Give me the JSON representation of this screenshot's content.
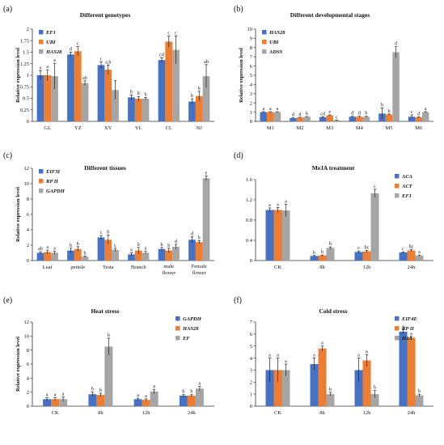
{
  "chart_data": [
    {
      "panel_label": "(a)",
      "title": "Different genotypes",
      "type": "bar",
      "ylabel": "Relative expression level",
      "ylim": [
        0,
        2
      ],
      "yticks": [
        0,
        0.25,
        0.5,
        0.75,
        1,
        1.25,
        1.5,
        1.75,
        2
      ],
      "legend_position": "top-left",
      "categories": [
        "GL",
        "YZ",
        "XY",
        "YL",
        "CL",
        "NJ"
      ],
      "series": [
        {
          "name": "EF1",
          "color": "#4472c4",
          "values": [
            1.0,
            1.45,
            1.22,
            0.52,
            1.33,
            0.43
          ],
          "errors": [
            0.1,
            0.05,
            0.07,
            0.05,
            0.05,
            0.06
          ],
          "letters": [
            "a",
            "d",
            "c",
            "b",
            "cd",
            "b"
          ]
        },
        {
          "name": "UBI",
          "color": "#ed7d31",
          "values": [
            1.0,
            1.52,
            1.12,
            0.49,
            1.73,
            0.55
          ],
          "errors": [
            0.12,
            0.1,
            0.1,
            0.05,
            0.12,
            0.1
          ],
          "letters": [
            "a",
            "c",
            "a,b",
            "b",
            "c",
            "b"
          ]
        },
        {
          "name": "HAS28",
          "color": "#a5a5a5",
          "values": [
            0.98,
            0.83,
            0.68,
            0.49,
            1.55,
            0.98
          ],
          "errors": [
            0.28,
            0.05,
            0.2,
            0.03,
            0.3,
            0.25
          ],
          "letters": [
            "a",
            "ab",
            "",
            "b",
            "c",
            "ab"
          ]
        }
      ]
    },
    {
      "panel_label": "(b)",
      "title": "Different developmental stages",
      "type": "bar",
      "ylabel": "Relative expression level",
      "ylim": [
        0,
        10
      ],
      "yticks": [
        0,
        1,
        2,
        3,
        4,
        5,
        6,
        7,
        8,
        9,
        10
      ],
      "legend_position": "top-left",
      "categories": [
        "M1",
        "M2",
        "M3",
        "M4",
        "M5",
        "M6"
      ],
      "series": [
        {
          "name": "HAS28",
          "color": "#4472c4",
          "values": [
            1.0,
            0.35,
            0.45,
            0.5,
            0.85,
            0.5
          ],
          "errors": [
            0.05,
            0.03,
            0.04,
            0.05,
            0.6,
            0.2
          ],
          "letters": [
            "a",
            "d",
            "cd",
            "d",
            "b",
            "c"
          ]
        },
        {
          "name": "UBI",
          "color": "#ed7d31",
          "values": [
            1.0,
            0.42,
            0.65,
            0.5,
            0.75,
            0.45
          ],
          "errors": [
            0.05,
            0.03,
            0.05,
            0.05,
            0.05,
            0.05
          ],
          "letters": [
            "a",
            "d",
            "e",
            "d",
            "b",
            "d"
          ]
        },
        {
          "name": "ADSS",
          "color": "#a5a5a5",
          "values": [
            1.0,
            0.5,
            0.12,
            0.5,
            7.5,
            1.0
          ],
          "errors": [
            0.05,
            0.03,
            0.02,
            0.05,
            0.6,
            0.05
          ],
          "letters": [
            "a",
            "b",
            "c",
            "b",
            "d",
            "a"
          ]
        }
      ]
    },
    {
      "panel_label": "(c)",
      "title": "Different tissues",
      "type": "bar",
      "ylabel": "Relative expression level",
      "ylim": [
        0,
        12
      ],
      "yticks": [
        0,
        2,
        4,
        6,
        8,
        10,
        12
      ],
      "legend_position": "top-left",
      "categories": [
        "Leaf",
        "petiole",
        "Testa",
        "Branch",
        "male flower",
        "Female flower"
      ],
      "series": [
        {
          "name": "EIF3I",
          "color": "#4472c4",
          "values": [
            1.0,
            1.3,
            3.0,
            0.8,
            1.5,
            2.7
          ],
          "errors": [
            0.15,
            0.3,
            0.25,
            0.2,
            0.2,
            0.4
          ],
          "letters": [
            "ab",
            "b",
            "c",
            "a",
            "b",
            "d"
          ]
        },
        {
          "name": "RP II",
          "color": "#ed7d31",
          "values": [
            1.1,
            1.5,
            2.7,
            1.3,
            1.3,
            2.4
          ],
          "errors": [
            0.25,
            0.3,
            0.6,
            0.4,
            0.3,
            0.2
          ],
          "letters": [
            "a",
            "b",
            "b",
            "b",
            "b",
            "b"
          ]
        },
        {
          "name": "GAPDH",
          "color": "#a5a5a5",
          "values": [
            1.0,
            0.5,
            1.4,
            1.0,
            1.8,
            10.7
          ],
          "errors": [
            0.2,
            0.1,
            0.2,
            0.2,
            0.3,
            0.3
          ],
          "letters": [
            "a",
            "b",
            "c",
            "a",
            "d",
            "e"
          ]
        }
      ]
    },
    {
      "panel_label": "(d)",
      "title": "MeJA treatment",
      "type": "bar",
      "ylabel": "",
      "ylim": [
        0,
        1.6
      ],
      "yticks": [
        0,
        0.4,
        0.8,
        1.2,
        1.6
      ],
      "legend_position": "top-right",
      "categories": [
        "CK",
        "8h",
        "12h",
        "24h"
      ],
      "series": [
        {
          "name": "ACA",
          "color": "#4472c4",
          "values": [
            1.0,
            0.09,
            0.17,
            0.16
          ],
          "errors": [
            0.04,
            0.01,
            0.02,
            0.01
          ],
          "letters": [
            "a",
            "b",
            "c",
            "c"
          ]
        },
        {
          "name": "ACT",
          "color": "#ed7d31",
          "values": [
            1.0,
            0.1,
            0.18,
            0.2
          ],
          "errors": [
            0.05,
            0.01,
            0.02,
            0.02
          ],
          "letters": [
            "a",
            "b",
            "bc",
            "bc"
          ]
        },
        {
          "name": "EF1",
          "color": "#a5a5a5",
          "values": [
            0.99,
            0.25,
            1.33,
            0.1
          ],
          "errors": [
            0.12,
            0.02,
            0.08,
            0.01
          ],
          "letters": [
            "a",
            "b",
            "c",
            "a"
          ]
        }
      ]
    },
    {
      "panel_label": "(e)",
      "title": "Heat stress",
      "type": "bar",
      "ylabel": "Relative expression level",
      "ylim": [
        0,
        12
      ],
      "yticks": [
        0,
        2,
        4,
        6,
        8,
        10,
        12
      ],
      "legend_position": "top-right",
      "categories": [
        "CK",
        "8h",
        "12h",
        "24h"
      ],
      "series": [
        {
          "name": "GAPDH",
          "color": "#4472c4",
          "values": [
            1.0,
            1.7,
            1.0,
            1.5
          ],
          "errors": [
            0.2,
            0.3,
            0.15,
            0.15
          ],
          "letters": [
            "a",
            "b",
            "a",
            "b"
          ]
        },
        {
          "name": "HAS28",
          "color": "#ed7d31",
          "values": [
            1.0,
            1.6,
            0.9,
            1.5
          ],
          "errors": [
            0.2,
            0.25,
            0.15,
            0.15
          ],
          "letters": [
            "a",
            "b",
            "a",
            "b"
          ]
        },
        {
          "name": "EF",
          "color": "#a5a5a5",
          "values": [
            1.0,
            8.5,
            2.1,
            2.5
          ],
          "errors": [
            0.3,
            1.2,
            0.3,
            0.3
          ],
          "letters": [
            "a",
            "b",
            "a",
            "a"
          ]
        }
      ]
    },
    {
      "panel_label": "(f)",
      "title": "Cold stress",
      "type": "bar",
      "ylabel": "",
      "ylim": [
        0,
        7
      ],
      "yticks": [
        0,
        1,
        2,
        3,
        4,
        5,
        6,
        7
      ],
      "legend_position": "top-right",
      "categories": [
        "CK",
        "8h",
        "12h",
        "24h"
      ],
      "series": [
        {
          "name": "EIF4E",
          "color": "#4472c4",
          "values": [
            3.0,
            3.5,
            3.0,
            6.2
          ],
          "errors": [
            1.0,
            0.5,
            1.0,
            0.2
          ],
          "letters": [
            "a",
            "a",
            "a",
            "a"
          ]
        },
        {
          "name": "RP II",
          "color": "#ed7d31",
          "values": [
            3.0,
            4.8,
            3.8,
            5.7
          ],
          "errors": [
            1.0,
            0.2,
            0.5,
            0.1
          ],
          "letters": [
            "a",
            "a",
            "a",
            "a"
          ]
        },
        {
          "name": "H2A",
          "color": "#a5a5a5",
          "values": [
            3.0,
            1.0,
            1.0,
            0.9
          ],
          "errors": [
            0.5,
            0.15,
            0.3,
            0.1
          ],
          "letters": [
            "a",
            "b",
            "b",
            "b"
          ]
        }
      ]
    }
  ]
}
